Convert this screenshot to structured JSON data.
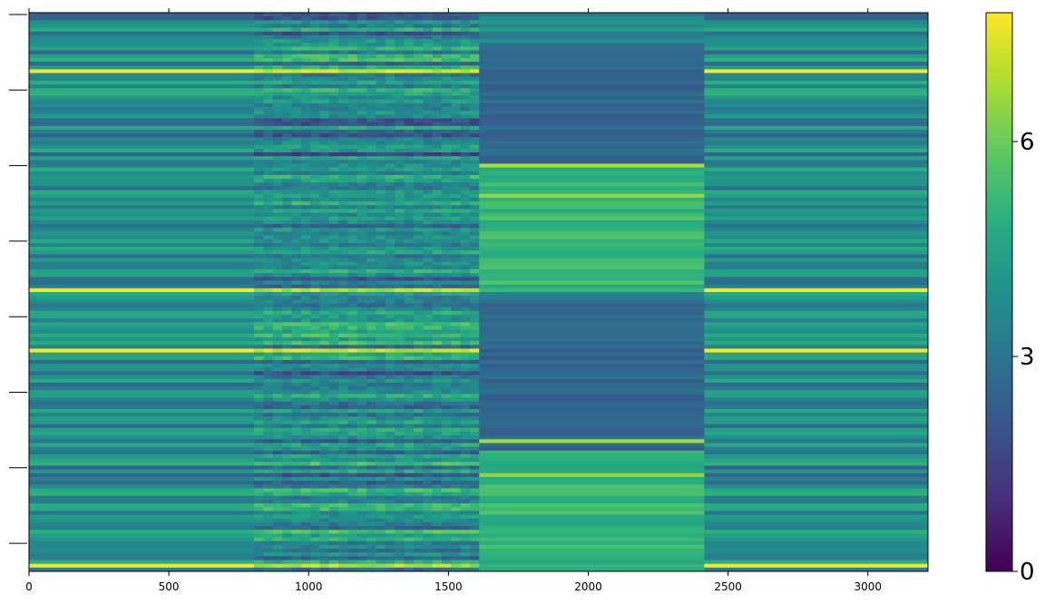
{
  "chart_data": {
    "type": "heatmap",
    "title": "",
    "xlabel": "",
    "ylabel": "",
    "xlim": [
      0,
      3215
    ],
    "x_ticks": [
      0,
      500,
      1000,
      1500,
      2000,
      2500,
      3000
    ],
    "x_tick_labels": [
      "0",
      "500",
      "1000",
      "1500",
      "2000",
      "2500",
      "3000"
    ],
    "y_tick_count": 8,
    "y_tick_labels_shown": false,
    "n_rows": 148,
    "segments": [
      {
        "x_start": 0,
        "x_end": 805,
        "texture": "smooth",
        "pattern": "A"
      },
      {
        "x_start": 805,
        "x_end": 1610,
        "texture": "noisy",
        "pattern": "B"
      },
      {
        "x_start": 1610,
        "x_end": 2415,
        "texture": "smooth",
        "pattern": "C"
      },
      {
        "x_start": 2415,
        "x_end": 3215,
        "texture": "smooth",
        "pattern": "A"
      }
    ],
    "highlight_rows_note": "yellow bands at approx. value 7.8",
    "colormap": "viridis",
    "colorbar": {
      "range": [
        0,
        7.8
      ],
      "ticks": [
        0,
        3,
        6
      ],
      "tick_labels": [
        "0",
        "3",
        "6"
      ],
      "placement": "right"
    },
    "grid": false
  }
}
